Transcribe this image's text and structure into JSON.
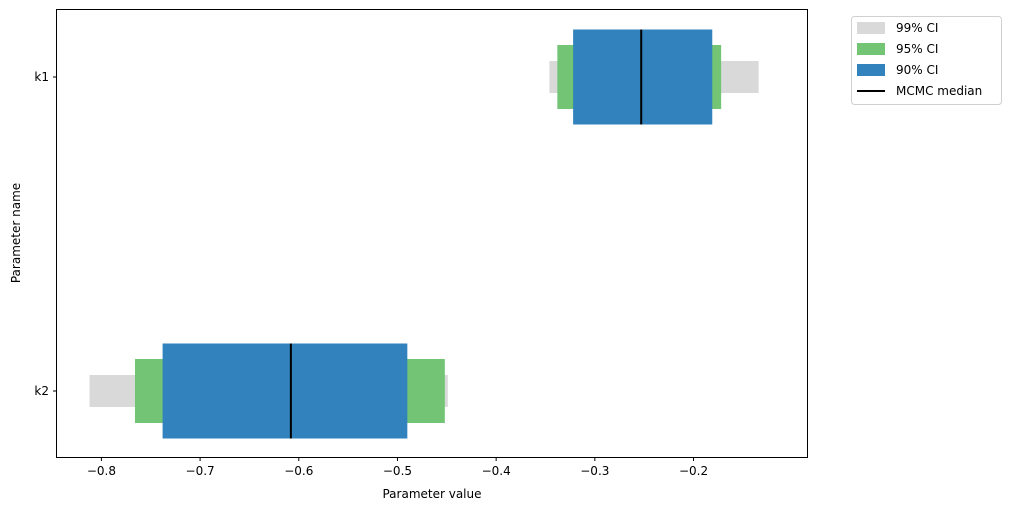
{
  "chart_data": {
    "type": "bar",
    "orientation": "horizontal-interval",
    "xlabel": "Parameter value",
    "ylabel": "Parameter name",
    "xlim": [
      -0.845,
      -0.085
    ],
    "xticks": [
      -0.8,
      -0.7,
      -0.6,
      -0.5,
      -0.4,
      -0.3,
      -0.2
    ],
    "xtick_labels": [
      "−0.8",
      "−0.7",
      "−0.6",
      "−0.5",
      "−0.4",
      "−0.3",
      "−0.2"
    ],
    "categories": [
      "k1",
      "k2"
    ],
    "intervals": [
      {
        "name": "99% CI",
        "color": "#d9d9d9",
        "values": [
          [
            -0.346,
            -0.134
          ],
          [
            -0.812,
            -0.449
          ]
        ]
      },
      {
        "name": "95% CI",
        "color": "#74c476",
        "values": [
          [
            -0.338,
            -0.172
          ],
          [
            -0.766,
            -0.452
          ]
        ]
      },
      {
        "name": "90% CI",
        "color": "#3182bd",
        "values": [
          [
            -0.322,
            -0.181
          ],
          [
            -0.738,
            -0.49
          ]
        ]
      }
    ],
    "median": {
      "name": "MCMC median",
      "color": "#000000",
      "values": [
        -0.253,
        -0.608
      ]
    },
    "grid": false,
    "legend_position": "outside top-right"
  }
}
